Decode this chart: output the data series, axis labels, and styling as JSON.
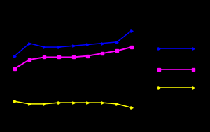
{
  "background_color": "#000000",
  "x": [
    0,
    1,
    2,
    3,
    4,
    5,
    6,
    7,
    8
  ],
  "blue_line": [
    58,
    68,
    65,
    65,
    66,
    67,
    68,
    69,
    78
  ],
  "magenta_line": [
    48,
    55,
    57,
    57,
    57,
    58,
    60,
    62,
    65
  ],
  "yellow_line": [
    22,
    20,
    20,
    21,
    21,
    21,
    21,
    20,
    17
  ],
  "blue_color": "#0000ff",
  "magenta_color": "#ff00ff",
  "yellow_color": "#ffff00",
  "ylim": [
    5,
    95
  ],
  "xlim": [
    -0.3,
    9.5
  ]
}
